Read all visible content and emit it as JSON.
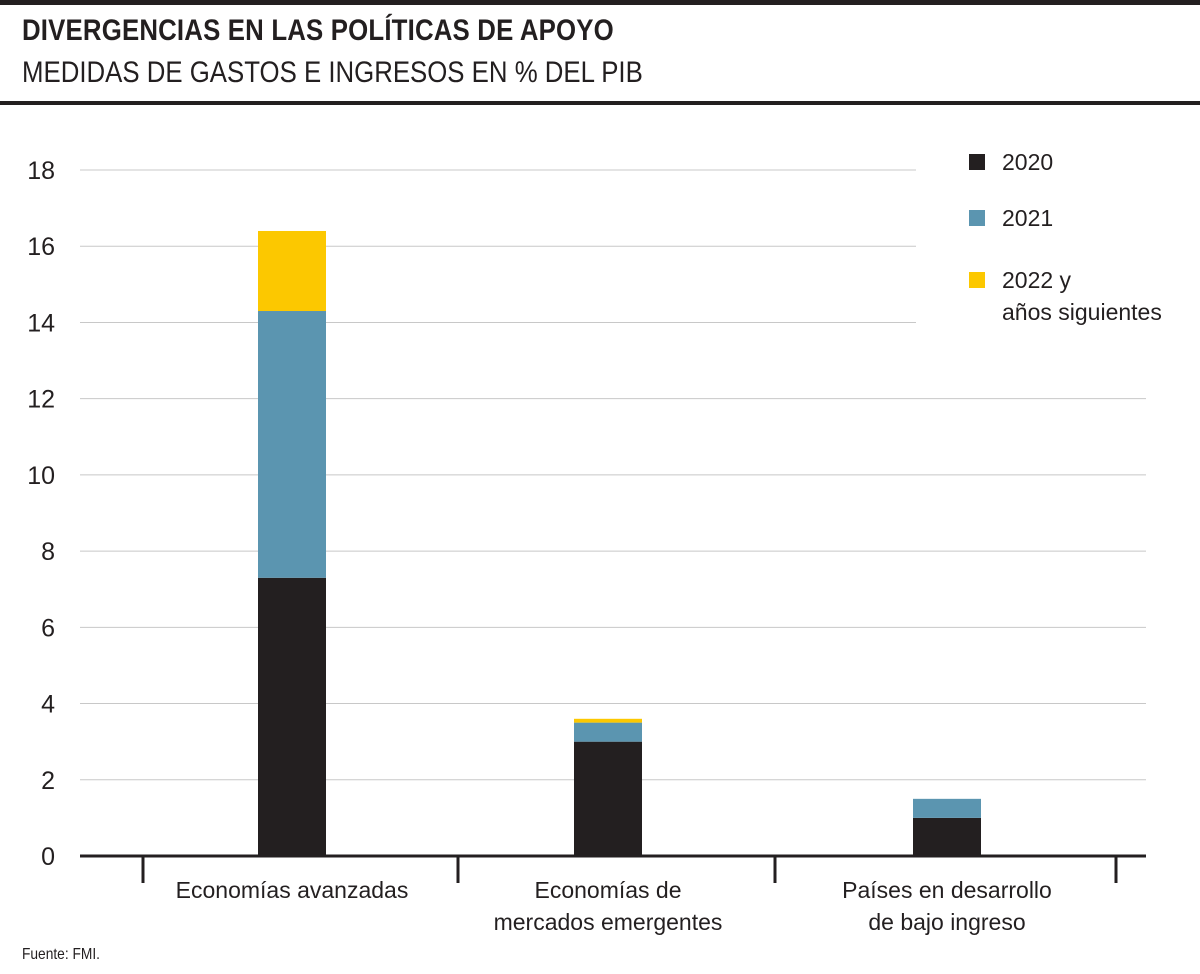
{
  "header": {
    "title": "DIVERGENCIAS EN LAS POLÍTICAS DE APOYO",
    "subtitle": "MEDIDAS DE GASTOS E INGRESOS EN % DEL PIB"
  },
  "footer": {
    "source": "Fuente: FMI."
  },
  "chart_data": {
    "type": "bar",
    "stacked": true,
    "title": "DIVERGENCIAS EN LAS POLÍTICAS DE APOYO",
    "subtitle": "MEDIDAS DE GASTOS E INGRESOS EN % DEL PIB",
    "categories": [
      [
        "Economías avanzadas"
      ],
      [
        "Economías de",
        "mercados emergentes"
      ],
      [
        "Países en desarrollo",
        "de bajo ingreso"
      ]
    ],
    "series": [
      {
        "name": "2020",
        "label_lines": [
          "2020"
        ],
        "color": "#231f20",
        "values": [
          7.3,
          3.0,
          1.0
        ]
      },
      {
        "name": "2021",
        "label_lines": [
          "2021"
        ],
        "color": "#5b95b0",
        "values": [
          7.0,
          0.5,
          0.5
        ]
      },
      {
        "name": "2022 y años siguientes",
        "label_lines": [
          "2022 y",
          "años siguientes"
        ],
        "color": "#fcc800",
        "values": [
          2.1,
          0.1,
          0.0
        ]
      }
    ],
    "yticks": [
      "0",
      "2",
      "4",
      "6",
      "8",
      "10",
      "12",
      "14",
      "16",
      "18"
    ],
    "ylim": [
      0,
      18
    ],
    "xlabel": "",
    "ylabel": "",
    "grid": true,
    "legend_position": "top-right"
  }
}
